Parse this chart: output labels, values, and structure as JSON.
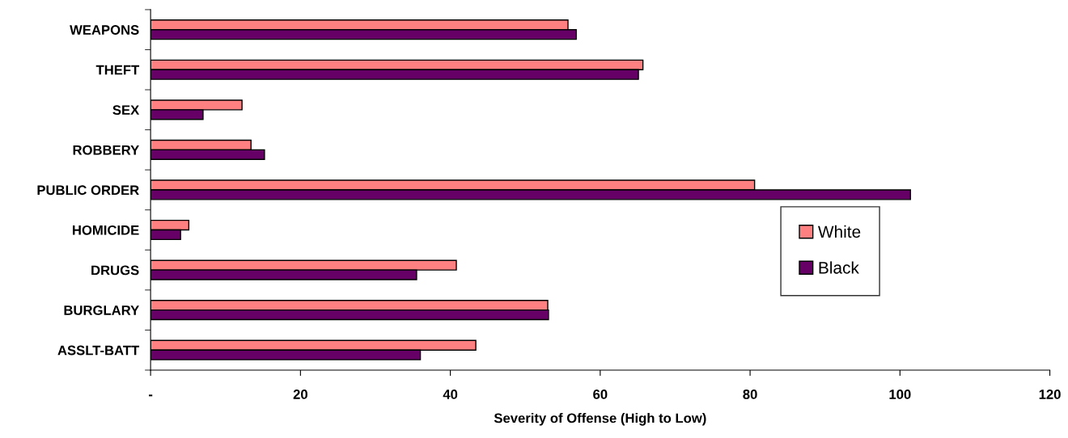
{
  "chart_data": {
    "type": "bar",
    "orientation": "horizontal",
    "xlabel": "Severity of Offense (High to Low)",
    "categories": [
      "WEAPONS",
      "THEFT",
      "SEX",
      "ROBBERY",
      "PUBLIC ORDER",
      "HOMICIDE",
      "DRUGS",
      "BURGLARY",
      "ASSLT-BATT"
    ],
    "series": [
      {
        "name": "White",
        "color": "#ff8080",
        "values": [
          55.7,
          65.7,
          12.2,
          13.4,
          80.6,
          5.1,
          40.8,
          53.0,
          43.4
        ]
      },
      {
        "name": "Black",
        "color": "#660066",
        "values": [
          56.8,
          65.1,
          7.0,
          15.2,
          101.4,
          4.0,
          35.5,
          53.1,
          36.0
        ]
      }
    ],
    "xlim": [
      0,
      120
    ],
    "xticks": [
      {
        "value": 0,
        "label": "-"
      },
      20,
      40,
      60,
      80,
      100,
      120
    ],
    "grid": false,
    "legend": "right"
  }
}
